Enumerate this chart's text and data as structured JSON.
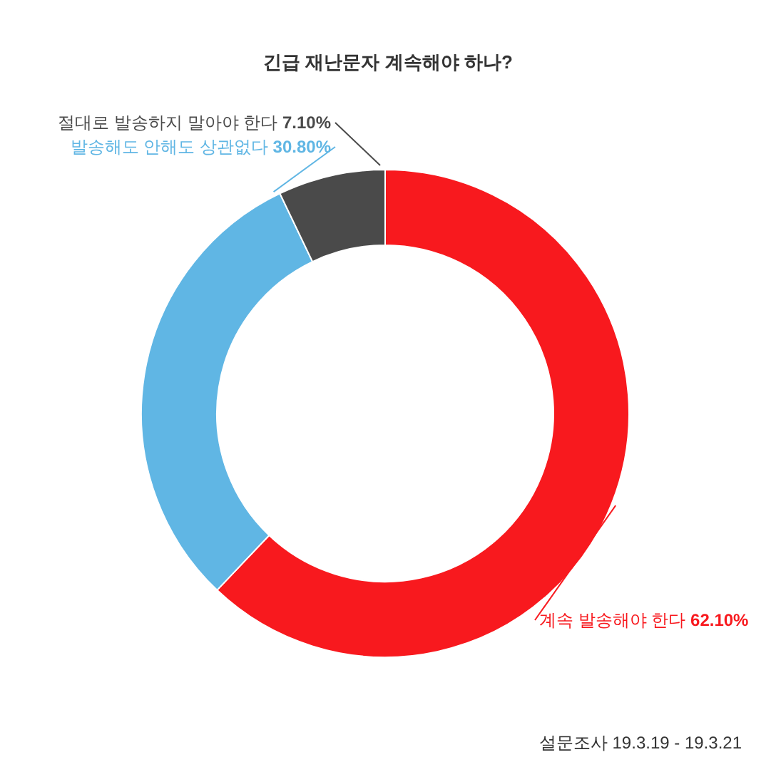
{
  "chart_data": {
    "type": "donut",
    "title": "긴급 재난문자 계속해야 하나?",
    "categories": [
      "계속 발송해야 한다",
      "발송해도 안해도 상관없다",
      "절대로 발송하지 말아야 한다"
    ],
    "values": [
      62.1,
      30.8,
      7.1
    ],
    "value_labels": [
      "62.10%",
      "30.80%",
      "7.10%"
    ],
    "colors": [
      "#f8191e",
      "#60b6e4",
      "#4a4a4a"
    ],
    "annotations": [
      "설문조사 19.3.19 - 19.3.21"
    ]
  }
}
